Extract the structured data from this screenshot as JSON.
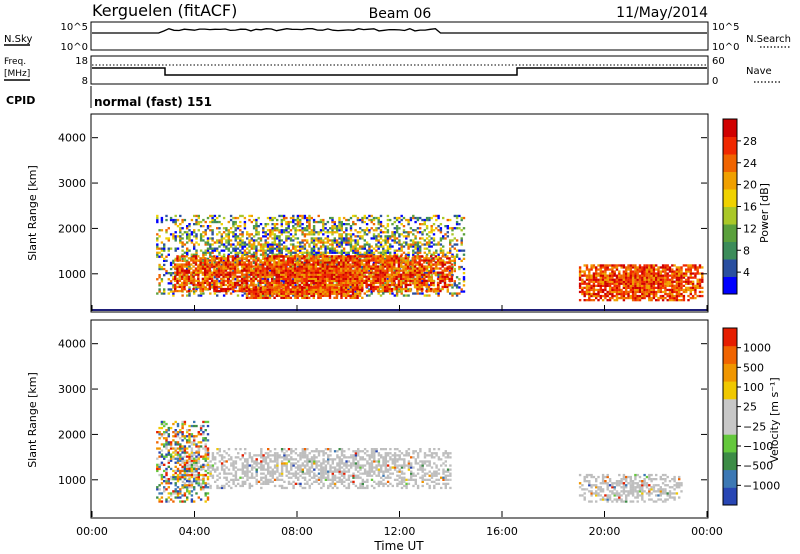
{
  "header": {
    "station": "Kerguelen (fitACF)",
    "beam": "Beam 06",
    "date": "11/May/2014"
  },
  "noise_panel": {
    "left_label": "N.Sky",
    "right_label": "N.Search",
    "left_ticks": [
      "10^5",
      "10^0"
    ],
    "right_ticks": [
      "10^5",
      "10^0"
    ]
  },
  "freq_panel": {
    "left_label_1": "Freq.",
    "left_label_2": "[MHz]",
    "right_label": "Nave",
    "left_ticks": [
      "18",
      "8"
    ],
    "right_ticks": [
      "60",
      "0"
    ]
  },
  "cpid": {
    "label": "CPID",
    "value": "normal (fast) 151"
  },
  "colors": {
    "power_scale": [
      "#0000ff",
      "#2a4fa0",
      "#3c8c5a",
      "#5aa03c",
      "#aac828",
      "#f0d200",
      "#f0a000",
      "#f06400",
      "#f02800",
      "#d00000"
    ],
    "velocity_scale": [
      "#2846b4",
      "#3c78b4",
      "#3c8c46",
      "#64c83c",
      "#c8c8c8",
      "#c8c8c8",
      "#f0c800",
      "#f09600",
      "#f06400",
      "#e61e00"
    ],
    "ground_scatter": "#bebebe"
  },
  "chart_data": [
    {
      "type": "heatmap",
      "title": "",
      "xlabel": "",
      "ylabel": "Slant Range [km]",
      "x_ticks": [
        "00:00",
        "04:00",
        "08:00",
        "12:00",
        "16:00",
        "20:00",
        "00:00"
      ],
      "xlim_hours": [
        0,
        24
      ],
      "y_ticks": [
        1000,
        2000,
        3000,
        4000
      ],
      "ylim": [
        180,
        4500
      ],
      "colorbar": {
        "label": "Power [dB]",
        "ticks": [
          "4",
          "8",
          "12",
          "16",
          "20",
          "24",
          "28"
        ],
        "range": [
          0,
          30
        ]
      },
      "echo_regions": [
        {
          "t0": 2.5,
          "t1": 14.5,
          "r0": 500,
          "r1": 2300,
          "level": "mixed"
        },
        {
          "t0": 3.2,
          "t1": 14.0,
          "r0": 600,
          "r1": 1400,
          "level": "strong"
        },
        {
          "t0": 6.0,
          "t1": 10.5,
          "r0": 450,
          "r1": 700,
          "level": "strong"
        },
        {
          "t0": 19.0,
          "t1": 23.8,
          "r0": 400,
          "r1": 1200,
          "level": "strong"
        }
      ]
    },
    {
      "type": "heatmap",
      "title": "",
      "xlabel": "Time UT",
      "ylabel": "Slant Range [km]",
      "x_ticks": [
        "00:00",
        "04:00",
        "08:00",
        "12:00",
        "16:00",
        "20:00",
        "00:00"
      ],
      "xlim_hours": [
        0,
        24
      ],
      "y_ticks": [
        1000,
        2000,
        3000,
        4000
      ],
      "ylim": [
        180,
        4500
      ],
      "colorbar": {
        "label": "Velocity [m s⁻¹]",
        "ticks": [
          "1000",
          "500",
          "100",
          "25",
          "−25",
          "−100",
          "−500",
          "−1000"
        ]
      },
      "echo_regions": [
        {
          "t0": 3.5,
          "t1": 14.0,
          "r0": 800,
          "r1": 1700,
          "level": "ground"
        },
        {
          "t0": 19.0,
          "t1": 23.0,
          "r0": 500,
          "r1": 1100,
          "level": "ground"
        },
        {
          "t0": 2.5,
          "t1": 4.5,
          "r0": 500,
          "r1": 2300,
          "level": "mixed"
        }
      ]
    }
  ]
}
